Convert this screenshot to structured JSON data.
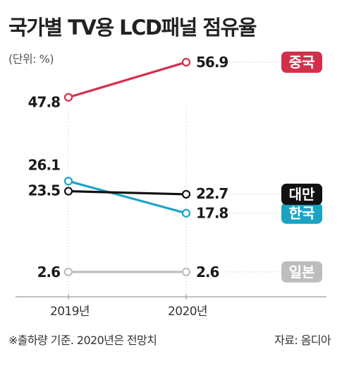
{
  "title": "국가별 TV용 LCD패널 점유율",
  "unit_note": "(단위: %)",
  "footnote": "※출하량 기준. 2020년은 전망치",
  "source": "자료: 옴디아",
  "chart_data": {
    "type": "line",
    "x": [
      "2019년",
      "2020년"
    ],
    "ylim": [
      0,
      60
    ],
    "series": [
      {
        "name": "중국",
        "values": [
          47.8,
          56.9
        ],
        "value_labels": [
          "47.8",
          "56.9"
        ],
        "color": "#d32f4a",
        "label_bg": "#d32f4a"
      },
      {
        "name": "한국",
        "values": [
          26.1,
          17.8
        ],
        "value_labels": [
          "26.1",
          "17.8"
        ],
        "color": "#1ba3c6",
        "label_bg": "#1ba3c6"
      },
      {
        "name": "대만",
        "values": [
          23.5,
          22.7
        ],
        "value_labels": [
          "23.5",
          "22.7"
        ],
        "color": "#111111",
        "label_bg": "#111111"
      },
      {
        "name": "일본",
        "values": [
          2.6,
          2.6
        ],
        "value_labels": [
          "2.6",
          "2.6"
        ],
        "color": "#bdbdbd",
        "label_bg": "#bdbdbd"
      }
    ]
  }
}
